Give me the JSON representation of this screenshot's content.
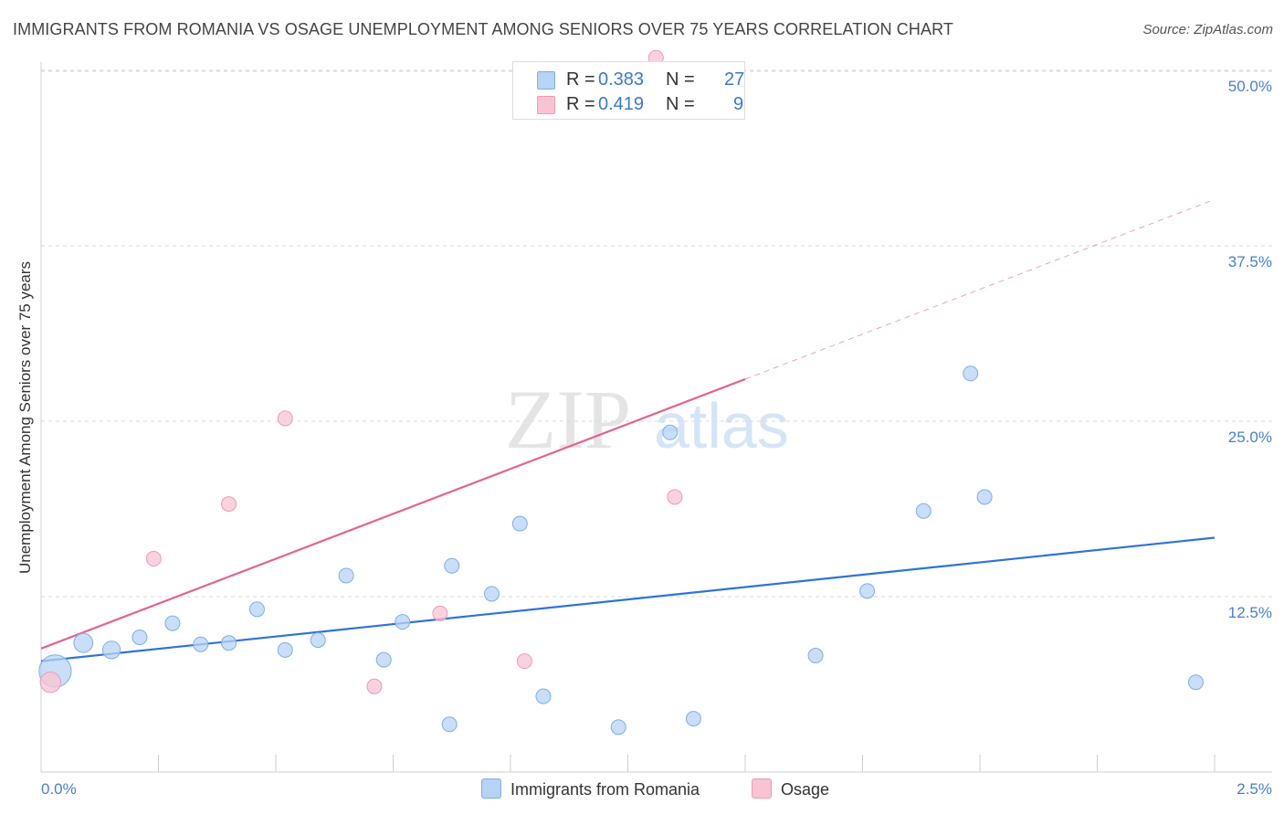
{
  "title": "IMMIGRANTS FROM ROMANIA VS OSAGE UNEMPLOYMENT AMONG SENIORS OVER 75 YEARS CORRELATION CHART",
  "source": "Source: ZipAtlas.com",
  "watermark": {
    "zip": "ZIP",
    "atlas": "atlas"
  },
  "colors": {
    "blue_fill": "#b7d3f5",
    "blue_stroke": "#7eaee8",
    "blue_line": "#2f73d6",
    "pink_fill": "#f8c3d3",
    "pink_stroke": "#ee9ab4",
    "pink_line": "#e4648f",
    "grid": "#d9d9d9",
    "tick_text": "#4a7fcf"
  },
  "legend": {
    "rows": [
      {
        "r_label": "R =",
        "r_value": "0.383",
        "n_label": "N =",
        "n_value": "27"
      },
      {
        "r_label": "R =",
        "r_value": "0.419",
        "n_label": "N =",
        "n_value": "9"
      }
    ]
  },
  "bottom_legend": {
    "series1": "Immigrants from Romania",
    "series2": "Osage"
  },
  "chart_data": {
    "type": "scatter",
    "title": "IMMIGRANTS FROM ROMANIA VS OSAGE UNEMPLOYMENT AMONG SENIORS OVER 75 YEARS CORRELATION CHART",
    "xlabel": "",
    "ylabel": "Unemployment Among Seniors over 75 years",
    "xlim": [
      0,
      2.5
    ],
    "ylim": [
      0,
      50
    ],
    "x_tick_labels": [
      "0.0%",
      "2.5%"
    ],
    "y_ticks": [
      12.5,
      25.0,
      37.5,
      50.0
    ],
    "y_tick_labels": [
      "12.5%",
      "25.0%",
      "37.5%",
      "50.0%"
    ],
    "grid": true,
    "legend_position": "top-center",
    "series": [
      {
        "name": "Immigrants from Romania",
        "color": "#b7d3f5",
        "points": [
          {
            "x": 0.03,
            "y": 7.2,
            "size": 2.2
          },
          {
            "x": 0.09,
            "y": 9.2,
            "size": 1.3
          },
          {
            "x": 0.15,
            "y": 8.7,
            "size": 1.2
          },
          {
            "x": 0.21,
            "y": 9.6,
            "size": 1.0
          },
          {
            "x": 0.28,
            "y": 10.6,
            "size": 1.0
          },
          {
            "x": 0.34,
            "y": 9.1,
            "size": 1.0
          },
          {
            "x": 0.4,
            "y": 9.2,
            "size": 1.0
          },
          {
            "x": 0.46,
            "y": 11.6,
            "size": 1.0
          },
          {
            "x": 0.52,
            "y": 8.7,
            "size": 1.0
          },
          {
            "x": 0.59,
            "y": 9.4,
            "size": 1.0
          },
          {
            "x": 0.65,
            "y": 14.0,
            "size": 1.0
          },
          {
            "x": 0.73,
            "y": 8.0,
            "size": 1.0
          },
          {
            "x": 0.77,
            "y": 10.7,
            "size": 1.0
          },
          {
            "x": 0.87,
            "y": 3.4,
            "size": 1.0
          },
          {
            "x": 0.875,
            "y": 14.7,
            "size": 1.0
          },
          {
            "x": 0.96,
            "y": 12.7,
            "size": 1.0
          },
          {
            "x": 1.02,
            "y": 17.7,
            "size": 1.0
          },
          {
            "x": 1.07,
            "y": 5.4,
            "size": 1.0
          },
          {
            "x": 1.23,
            "y": 3.2,
            "size": 1.0
          },
          {
            "x": 1.34,
            "y": 24.2,
            "size": 1.0
          },
          {
            "x": 1.39,
            "y": 3.8,
            "size": 1.0
          },
          {
            "x": 1.65,
            "y": 8.3,
            "size": 1.0
          },
          {
            "x": 1.76,
            "y": 12.9,
            "size": 1.0
          },
          {
            "x": 1.88,
            "y": 18.6,
            "size": 1.0
          },
          {
            "x": 1.98,
            "y": 28.4,
            "size": 1.0
          },
          {
            "x": 2.01,
            "y": 19.6,
            "size": 1.0
          },
          {
            "x": 2.46,
            "y": 6.4,
            "size": 1.0
          }
        ],
        "trend": {
          "x": [
            0.0,
            2.5
          ],
          "y": [
            7.9,
            16.7
          ],
          "style": "solid"
        }
      },
      {
        "name": "Osage",
        "color": "#f8c3d3",
        "points": [
          {
            "x": 0.02,
            "y": 6.4,
            "size": 1.4
          },
          {
            "x": 0.24,
            "y": 15.2,
            "size": 1.0
          },
          {
            "x": 0.4,
            "y": 19.1,
            "size": 1.0
          },
          {
            "x": 0.52,
            "y": 25.2,
            "size": 1.0
          },
          {
            "x": 0.71,
            "y": 6.1,
            "size": 1.0
          },
          {
            "x": 0.85,
            "y": 11.3,
            "size": 1.0
          },
          {
            "x": 1.03,
            "y": 7.9,
            "size": 1.0
          },
          {
            "x": 1.35,
            "y": 19.6,
            "size": 1.0
          },
          {
            "x": 1.31,
            "y": 50.9,
            "size": 1.0
          }
        ],
        "trend": {
          "x": [
            0.0,
            1.5
          ],
          "y": [
            8.8,
            28.0
          ],
          "style": "solid",
          "extension": {
            "x": [
              1.5,
              2.5
            ],
            "y": [
              28.0,
              40.8
            ],
            "style": "dashed"
          }
        }
      }
    ]
  },
  "y_axis_label": "Unemployment Among Seniors over 75 years"
}
